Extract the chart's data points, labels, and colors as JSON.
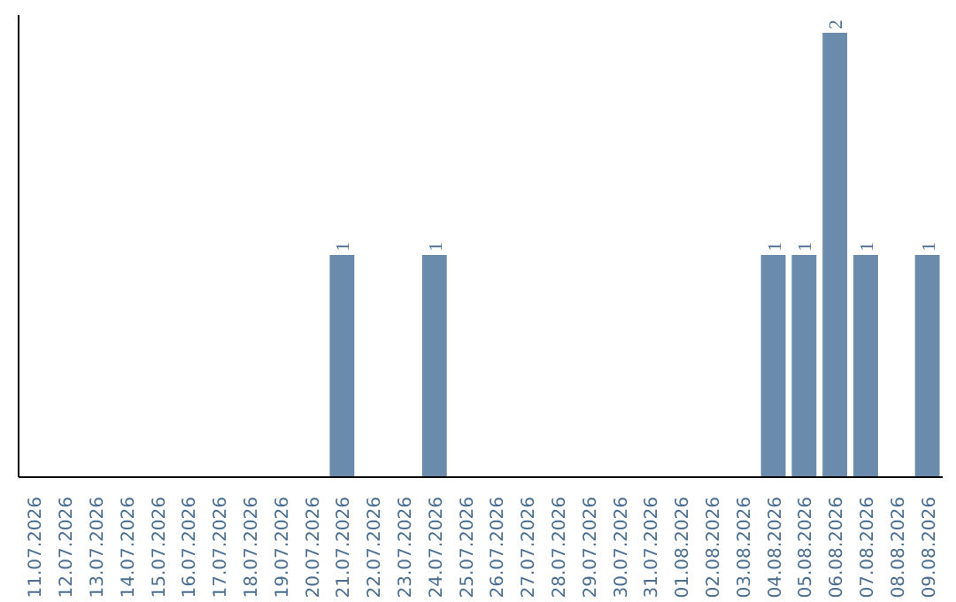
{
  "chart_data": {
    "type": "bar",
    "categories": [
      "11.07.2026",
      "12.07.2026",
      "13.07.2026",
      "14.07.2026",
      "15.07.2026",
      "16.07.2026",
      "17.07.2026",
      "18.07.2026",
      "19.07.2026",
      "20.07.2026",
      "21.07.2026",
      "22.07.2026",
      "23.07.2026",
      "24.07.2026",
      "25.07.2026",
      "26.07.2026",
      "27.07.2026",
      "28.07.2026",
      "29.07.2026",
      "30.07.2026",
      "31.07.2026",
      "01.08.2026",
      "02.08.2026",
      "03.08.2026",
      "04.08.2026",
      "05.08.2026",
      "06.08.2026",
      "07.08.2026",
      "08.08.2026",
      "09.08.2026"
    ],
    "values": [
      0,
      0,
      0,
      0,
      0,
      0,
      0,
      0,
      0,
      0,
      1,
      0,
      0,
      1,
      0,
      0,
      0,
      0,
      0,
      0,
      0,
      0,
      0,
      0,
      1,
      1,
      2,
      1,
      0,
      1
    ],
    "value_labels": [
      null,
      null,
      null,
      null,
      null,
      null,
      null,
      null,
      null,
      null,
      "1",
      null,
      null,
      "1",
      null,
      null,
      null,
      null,
      null,
      null,
      null,
      null,
      null,
      null,
      "1",
      "1",
      "2",
      "1",
      null,
      "1"
    ],
    "color": "#6a8bab",
    "grid": false,
    "tick_labels": "x"
  }
}
